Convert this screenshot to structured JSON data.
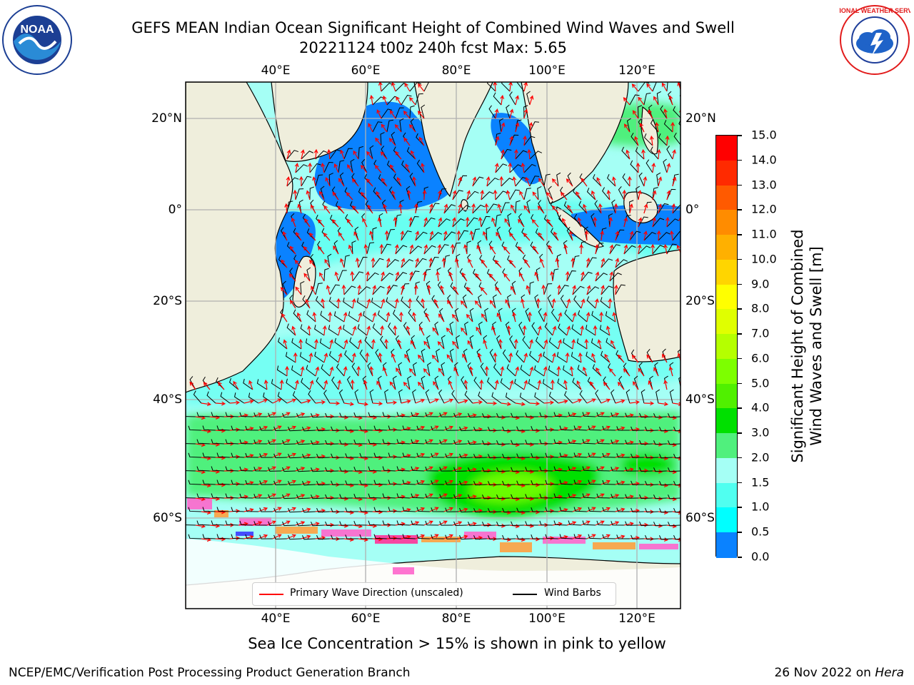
{
  "title": {
    "line1": "GEFS MEAN Indian Ocean Significant Height of Combined Wind Waves and Swell",
    "line2": "20221124 t00z 240h fcst   Max: 5.65"
  },
  "logos": {
    "noaa_text": "NOAA",
    "nws_text": "NATIONAL WEATHER SERVICE"
  },
  "map": {
    "lon_ticks": [
      "40°E",
      "60°E",
      "80°E",
      "100°E",
      "120°E"
    ],
    "lat_ticks": [
      "20°N",
      "0°",
      "20°S",
      "40°S",
      "60°S"
    ],
    "colors": {
      "land": "#efeedc",
      "coast": "#000000",
      "grid": "#b0b0b0",
      "arrow": "#ff0000",
      "barb": "#000000"
    }
  },
  "colorbar": {
    "label_line1": "Significant Height of Combined",
    "label_line2": "Wind Waves and Swell [m]",
    "ticks": [
      "15.0",
      "14.0",
      "13.0",
      "12.0",
      "11.0",
      "10.0",
      "9.0",
      "8.0",
      "7.0",
      "6.0",
      "5.0",
      "4.0",
      "3.0",
      "2.0",
      "1.5",
      "1.0",
      "0.5",
      "0.0"
    ],
    "colors_top_to_bottom": [
      "#ff0000",
      "#ff2a00",
      "#ff5a00",
      "#ff8c00",
      "#ffb000",
      "#ffd500",
      "#ffff00",
      "#e0ff00",
      "#b5ff00",
      "#7dff00",
      "#50f000",
      "#00e000",
      "#50f07d",
      "#a5fff5",
      "#50fff0",
      "#00ffff",
      "#0a82ff",
      "#0000ff"
    ]
  },
  "legend": {
    "wave_label": "Primary Wave Direction (unscaled)",
    "barb_label": "Wind Barbs"
  },
  "ice_note": "Sea Ice Concentration > 15% is shown in pink to yellow",
  "footer": {
    "left": "NCEP/EMC/Verification Post Processing Product Generation Branch",
    "date": "26 Nov 2022 on ",
    "host": "Hera"
  }
}
